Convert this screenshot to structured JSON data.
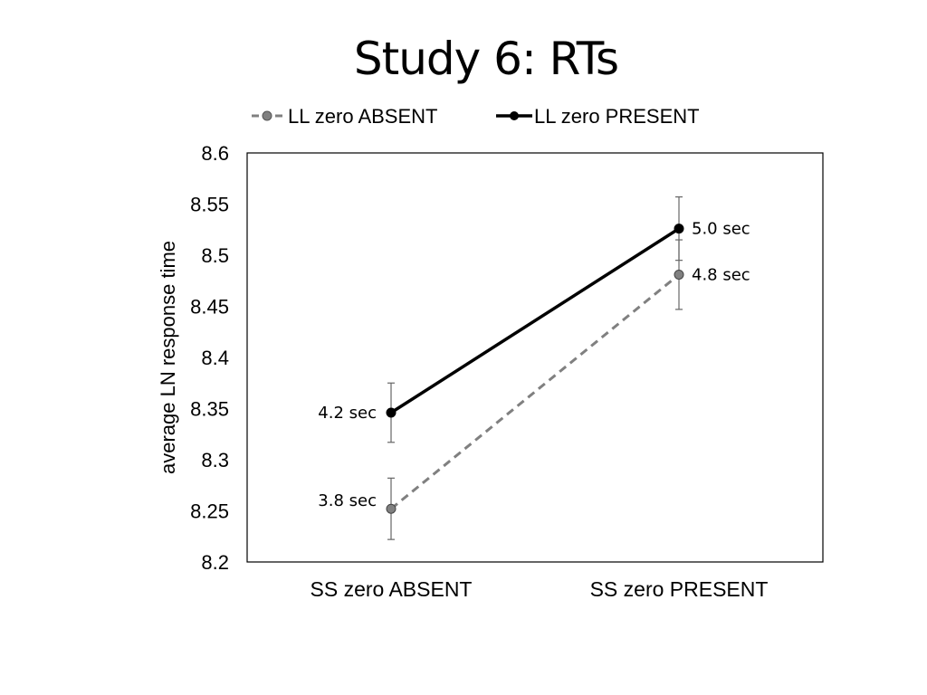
{
  "chart_data": {
    "type": "line",
    "title": "Study 6: RTs",
    "xlabel": "",
    "ylabel": "average LN response time",
    "categories": [
      "SS zero ABSENT",
      "SS zero PRESENT"
    ],
    "ylim": [
      8.2,
      8.6
    ],
    "yticks": [
      "8.6",
      "8.55",
      "8.5",
      "8.45",
      "8.4",
      "8.35",
      "8.3",
      "8.25",
      "8.2"
    ],
    "ytick_values": [
      8.6,
      8.55,
      8.5,
      8.45,
      8.4,
      8.35,
      8.3,
      8.25,
      8.2
    ],
    "grid": false,
    "legend_position": "top",
    "series": [
      {
        "name": "LL zero ABSENT",
        "values": [
          8.252,
          8.481
        ],
        "error": [
          0.03,
          0.034
        ],
        "data_labels": [
          "3.8 sec",
          "4.8 sec"
        ],
        "color": "#808080",
        "marker_fill": "#808080",
        "style": "dashed"
      },
      {
        "name": "LL zero PRESENT",
        "values": [
          8.346,
          8.526
        ],
        "error": [
          0.029,
          0.031
        ],
        "data_labels": [
          "4.2 sec",
          "5.0 sec"
        ],
        "color": "#000000",
        "marker_fill": "#000000",
        "style": "solid"
      }
    ]
  }
}
